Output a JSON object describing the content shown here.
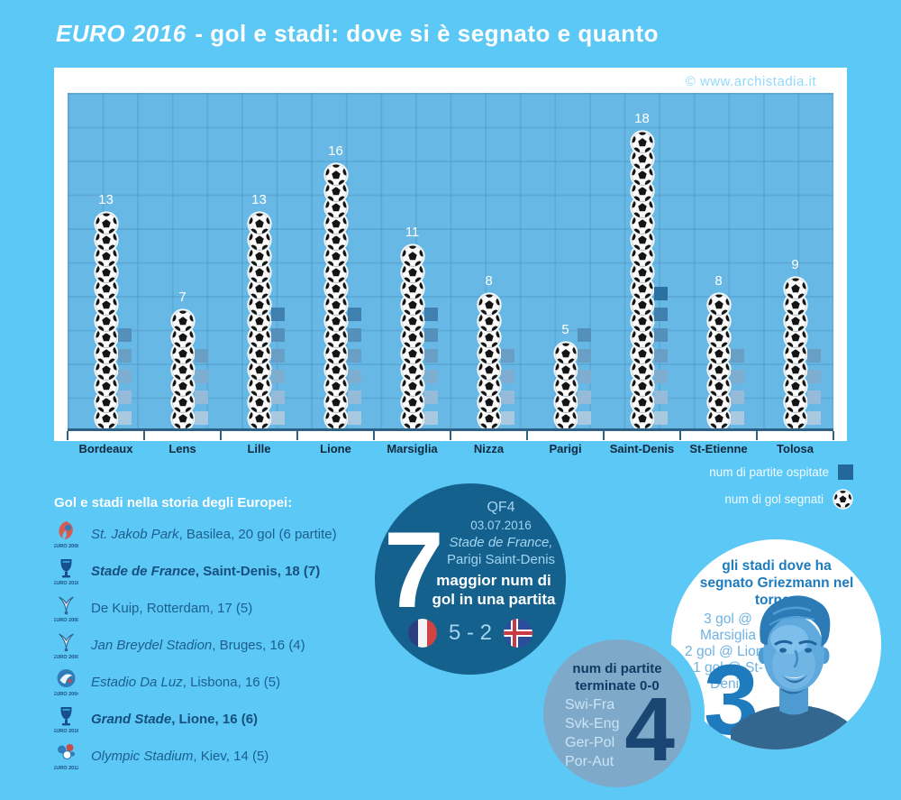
{
  "page": {
    "title_euro": "EURO 2016",
    "title_rest": " - gol e stadi: dove si è segnato e quanto",
    "watermark": "© www.archistadia.it"
  },
  "colors": {
    "background": "#5bc8f6",
    "plot_background": "#68b8e5",
    "card": "#ffffff",
    "dark_circle": "#15618e",
    "muted_circle": "#7fa9c9",
    "square_scale_light_to_dark": [
      "#a9c9e1",
      "#95bbd8",
      "#7fadcf",
      "#699ec5",
      "#5590bb",
      "#3f80ae",
      "#2a70a0"
    ],
    "legend_square": "#23689b",
    "axis_label": "#11293e",
    "history_text": "#1d5f8e",
    "accent_blue": "#1e7bbe"
  },
  "chart_data": {
    "type": "bar",
    "title": "EURO 2016 - gol e stadi: dove si è segnato e quanto",
    "categories": [
      "Bordeaux",
      "Lens",
      "Lille",
      "Lione",
      "Marsiglia",
      "Nizza",
      "Parigi",
      "Saint-Denis",
      "St-Etienne",
      "Tolosa"
    ],
    "series": [
      {
        "name": "num di gol segnati",
        "marker": "soccer-ball-icon",
        "unit_per_icon": 1,
        "values": [
          13,
          7,
          13,
          16,
          11,
          8,
          5,
          18,
          8,
          9
        ]
      },
      {
        "name": "num di partite ospitate",
        "marker": "square",
        "unit_per_icon": 1,
        "values": [
          5,
          4,
          6,
          6,
          6,
          4,
          5,
          7,
          4,
          4
        ]
      }
    ],
    "value_labels_shown_for": "num di gol segnati",
    "grid": true,
    "legend_position": "below-right",
    "xlabel": "",
    "ylabel": ""
  },
  "legend": {
    "matches_label": "num di partite ospitate",
    "goals_label": "num di gol segnati"
  },
  "history": {
    "header": "Gol e stadi nella storia degli Europei:",
    "items": [
      {
        "logo": "EURO 2008",
        "edition": "2008",
        "stadium": "St. Jakob Park",
        "rest": ", Basilea, 20 gol (6 partite)",
        "bold": false,
        "italic": true
      },
      {
        "logo": "EURO 2016",
        "edition": "2016",
        "stadium": "Stade de France",
        "rest": ", Saint-Denis, 18 (7)",
        "bold": true,
        "italic": true
      },
      {
        "logo": "EURO 2000",
        "edition": "2000",
        "stadium": "De Kuip",
        "rest": ", Rotterdam, 17 (5)",
        "bold": false,
        "italic": false
      },
      {
        "logo": "EURO 2000",
        "edition": "2000",
        "stadium": "Jan Breydel Stadion",
        "rest": ", Bruges, 16 (4)",
        "bold": false,
        "italic": true
      },
      {
        "logo": "EURO 2004",
        "edition": "2004",
        "stadium": "Estadio Da Luz",
        "rest": ", Lisbona, 16 (5)",
        "bold": false,
        "italic": true
      },
      {
        "logo": "EURO 2016",
        "edition": "2016",
        "stadium": "Grand Stade",
        "rest": ", Lione, 16 (6)",
        "bold": true,
        "italic": true
      },
      {
        "logo": "EURO 2012",
        "edition": "2012",
        "stadium": "Olympic Stadium",
        "rest": ", Kiev, 14 (5)",
        "bold": false,
        "italic": true
      }
    ]
  },
  "record_match": {
    "round": "QF4",
    "date": "03.07.2016",
    "venue": "Stade de France,",
    "city": "Parigi Saint-Denis",
    "big_number": "7",
    "caption": "maggior num di gol in una partita",
    "home_team": "Francia",
    "away_team": "Islanda",
    "score": "5 - 2"
  },
  "draws": {
    "title": "num di partite terminate 0-0",
    "matches": [
      "Swi-Fra",
      "Svk-Eng",
      "Ger-Pol",
      "Por-Aut"
    ],
    "big_number": "4"
  },
  "griezmann": {
    "title": "gli stadi dove ha segnato Griezmann nel torneo",
    "items": [
      "3 gol @ Marsiglia",
      "2 gol @ Lione",
      "1 gol @ St-Denis"
    ],
    "big_number": "3"
  }
}
